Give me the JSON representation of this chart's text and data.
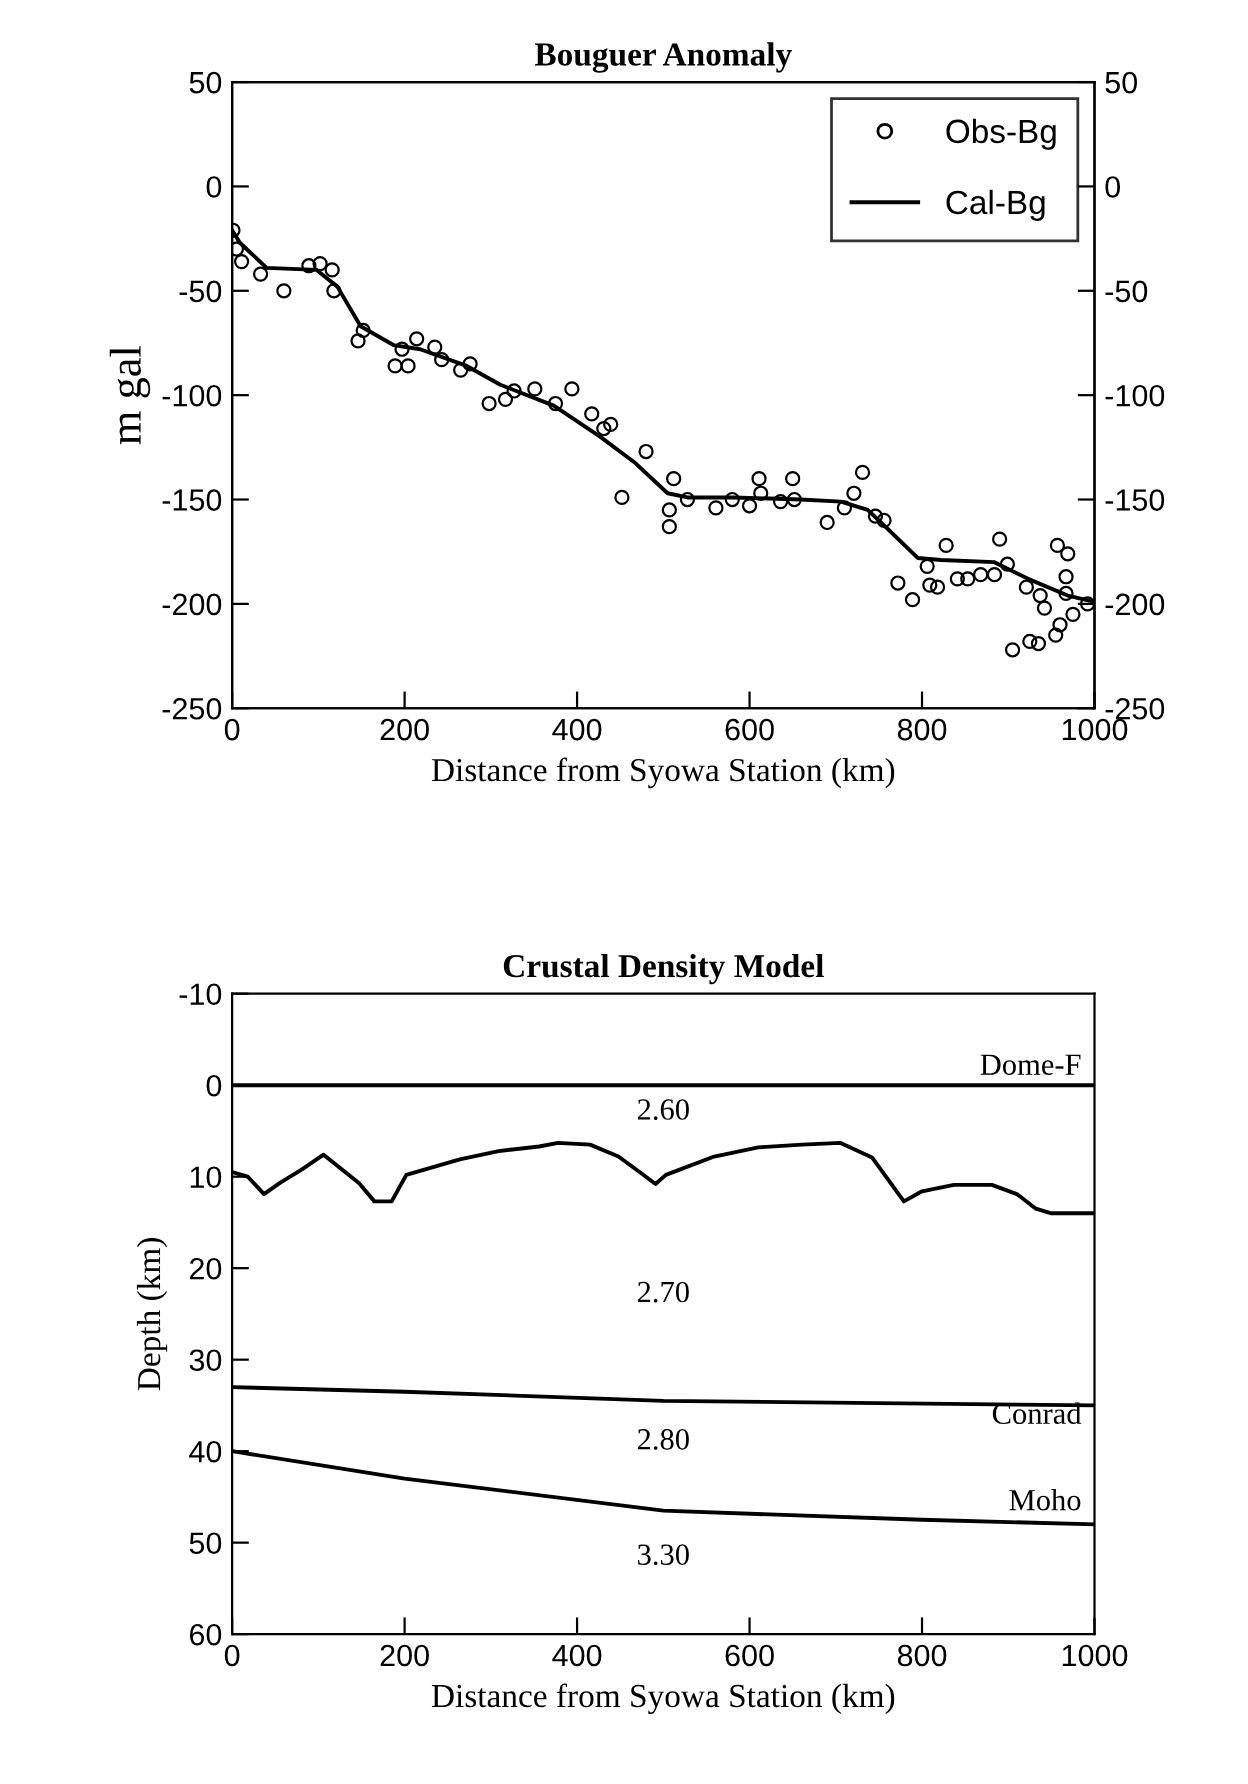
{
  "chart_data": [
    {
      "type": "scatter",
      "title": "Bouguer Anomaly",
      "xlabel": "Distance from Syowa Station (km)",
      "ylabel": "m gal",
      "xlim": [
        0,
        1000
      ],
      "xticks": [
        0,
        200,
        400,
        600,
        800,
        1000
      ],
      "ylim": [
        -250,
        50
      ],
      "yticks": [
        -250,
        -200,
        -150,
        -100,
        -50,
        0,
        50
      ],
      "y2lim": [
        -250,
        50
      ],
      "y2ticks": [
        -250,
        -200,
        -150,
        -100,
        -50,
        0,
        50
      ],
      "legend": "top right",
      "grid": false,
      "series": [
        {
          "name": "Obs-Bg",
          "type": "scatter",
          "marker": "circle",
          "color": "#000000",
          "x": [
            1,
            5,
            11,
            33,
            60,
            89,
            102,
            116,
            118,
            146,
            152,
            189,
            204,
            197,
            214,
            235,
            243,
            265,
            276,
            298,
            317,
            327,
            351,
            375,
            394,
            417,
            431,
            439,
            452,
            480,
            507,
            507,
            512,
            528,
            561,
            580,
            600,
            611,
            613,
            636,
            650,
            652,
            690,
            710,
            721,
            731,
            746,
            756,
            772,
            789,
            806,
            809,
            818,
            828,
            841,
            853,
            868,
            884,
            890,
            899,
            921,
            937,
            942,
            957,
            969,
            967,
            967,
            992,
            905,
            925,
            935,
            955,
            960,
            975
          ],
          "values": [
            -21,
            -30,
            -36,
            -42,
            -50,
            -38,
            -37,
            -40,
            -50,
            -74,
            -69,
            -86,
            -86,
            -78,
            -73,
            -77,
            -83,
            -88,
            -85,
            -104,
            -102,
            -98,
            -97,
            -104,
            -97,
            -109,
            -116,
            -114,
            -149,
            -127,
            -155,
            -163,
            -140,
            -150,
            -154,
            -150,
            -153,
            -140,
            -147,
            -151,
            -140,
            -150,
            -161,
            -154,
            -147,
            -137,
            -158,
            -160,
            -190,
            -198,
            -182,
            -191,
            -192,
            -172,
            -188,
            -188,
            -186,
            -186,
            -169,
            -181,
            -192,
            -196,
            -202,
            -172,
            -176,
            -187,
            -195,
            -200,
            -222,
            -218,
            -219,
            -215,
            -210,
            -205
          ]
        },
        {
          "name": "Cal-Bg",
          "type": "line",
          "line_style": "solid",
          "color": "#000000",
          "x": [
            0,
            9,
            40,
            98,
            122,
            149,
            187,
            218,
            272,
            311,
            373,
            427,
            466,
            505,
            528,
            582,
            659,
            706,
            737,
            760,
            795,
            822,
            884,
            923,
            969,
            1000
          ],
          "values": [
            -21,
            -27,
            -39,
            -40,
            -48,
            -67,
            -76,
            -78,
            -86,
            -95,
            -105,
            -120,
            -132,
            -147,
            -149,
            -149,
            -150,
            -151,
            -155,
            -164,
            -178,
            -179,
            -180,
            -188,
            -196,
            -199
          ]
        }
      ]
    },
    {
      "type": "line",
      "title": "Crustal Density Model",
      "xlabel": "Distance from Syowa Station (km)",
      "ylabel": "Depth (km)",
      "xlim": [
        0,
        1000
      ],
      "xticks": [
        0,
        200,
        400,
        600,
        800,
        1000
      ],
      "ylim": [
        60,
        -10
      ],
      "yticks": [
        -10,
        0,
        10,
        20,
        30,
        40,
        50,
        60
      ],
      "grid": false,
      "line_style": "solid",
      "series": [
        {
          "color": "#000000",
          "x": [
            0,
            1000
          ],
          "values": [
            0,
            0
          ]
        },
        {
          "color": "#000000",
          "x": [
            0,
            18,
            37,
            55,
            81,
            106,
            147,
            165,
            185,
            202,
            264,
            309,
            356,
            378,
            415,
            448,
            474,
            491,
            503,
            559,
            610,
            661,
            705,
            742,
            779,
            800,
            837,
            881,
            910,
            932,
            950,
            1000
          ],
          "values": [
            9.5,
            10,
            11.9,
            10.7,
            9.2,
            7.6,
            10.7,
            12.7,
            12.7,
            9.8,
            8.1,
            7.2,
            6.7,
            6.3,
            6.5,
            7.8,
            9.6,
            10.8,
            9.8,
            7.8,
            6.8,
            6.5,
            6.3,
            7.9,
            12.7,
            11.6,
            10.9,
            10.9,
            11.9,
            13.5,
            14,
            14
          ]
        },
        {
          "color": "#000000",
          "x": [
            0,
            200,
            500,
            1000
          ],
          "values": [
            33,
            33.5,
            34.5,
            35
          ]
        },
        {
          "color": "#000000",
          "x": [
            0,
            200,
            500,
            800,
            1000
          ],
          "values": [
            40,
            43,
            46.5,
            47.5,
            48
          ]
        }
      ],
      "annotations": [
        "Dome-F",
        "2.60",
        "2.70",
        "2.80",
        "Conrad",
        "Moho",
        "3.30"
      ]
    }
  ]
}
